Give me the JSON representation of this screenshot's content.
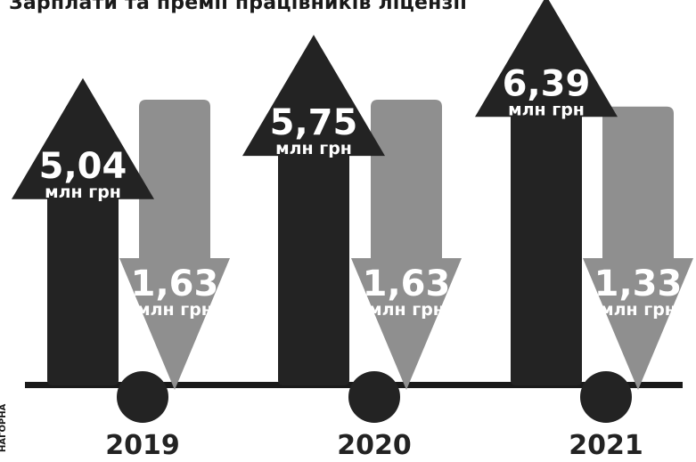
{
  "chart_data": {
    "type": "bar",
    "title": "Зарплати та премії працівників ліцензії",
    "categories": [
      "2019",
      "2020",
      "2021"
    ],
    "series": [
      {
        "values": [
          5.04,
          5.75,
          6.39
        ],
        "labels": [
          "5,04",
          "5,75",
          "6,39"
        ],
        "direction": "up",
        "color": "#232323"
      },
      {
        "values": [
          1.63,
          1.63,
          1.33
        ],
        "labels": [
          "1,63",
          "1,63",
          "1,33"
        ],
        "direction": "down",
        "color": "#8f8f8f"
      }
    ],
    "unit": "млн грн"
  },
  "side_label": "НАГОРНА",
  "colors": {
    "dark": "#232323",
    "gray": "#8f8f8f",
    "axis": "#1a1a1a",
    "text_light": "#ffffff"
  }
}
